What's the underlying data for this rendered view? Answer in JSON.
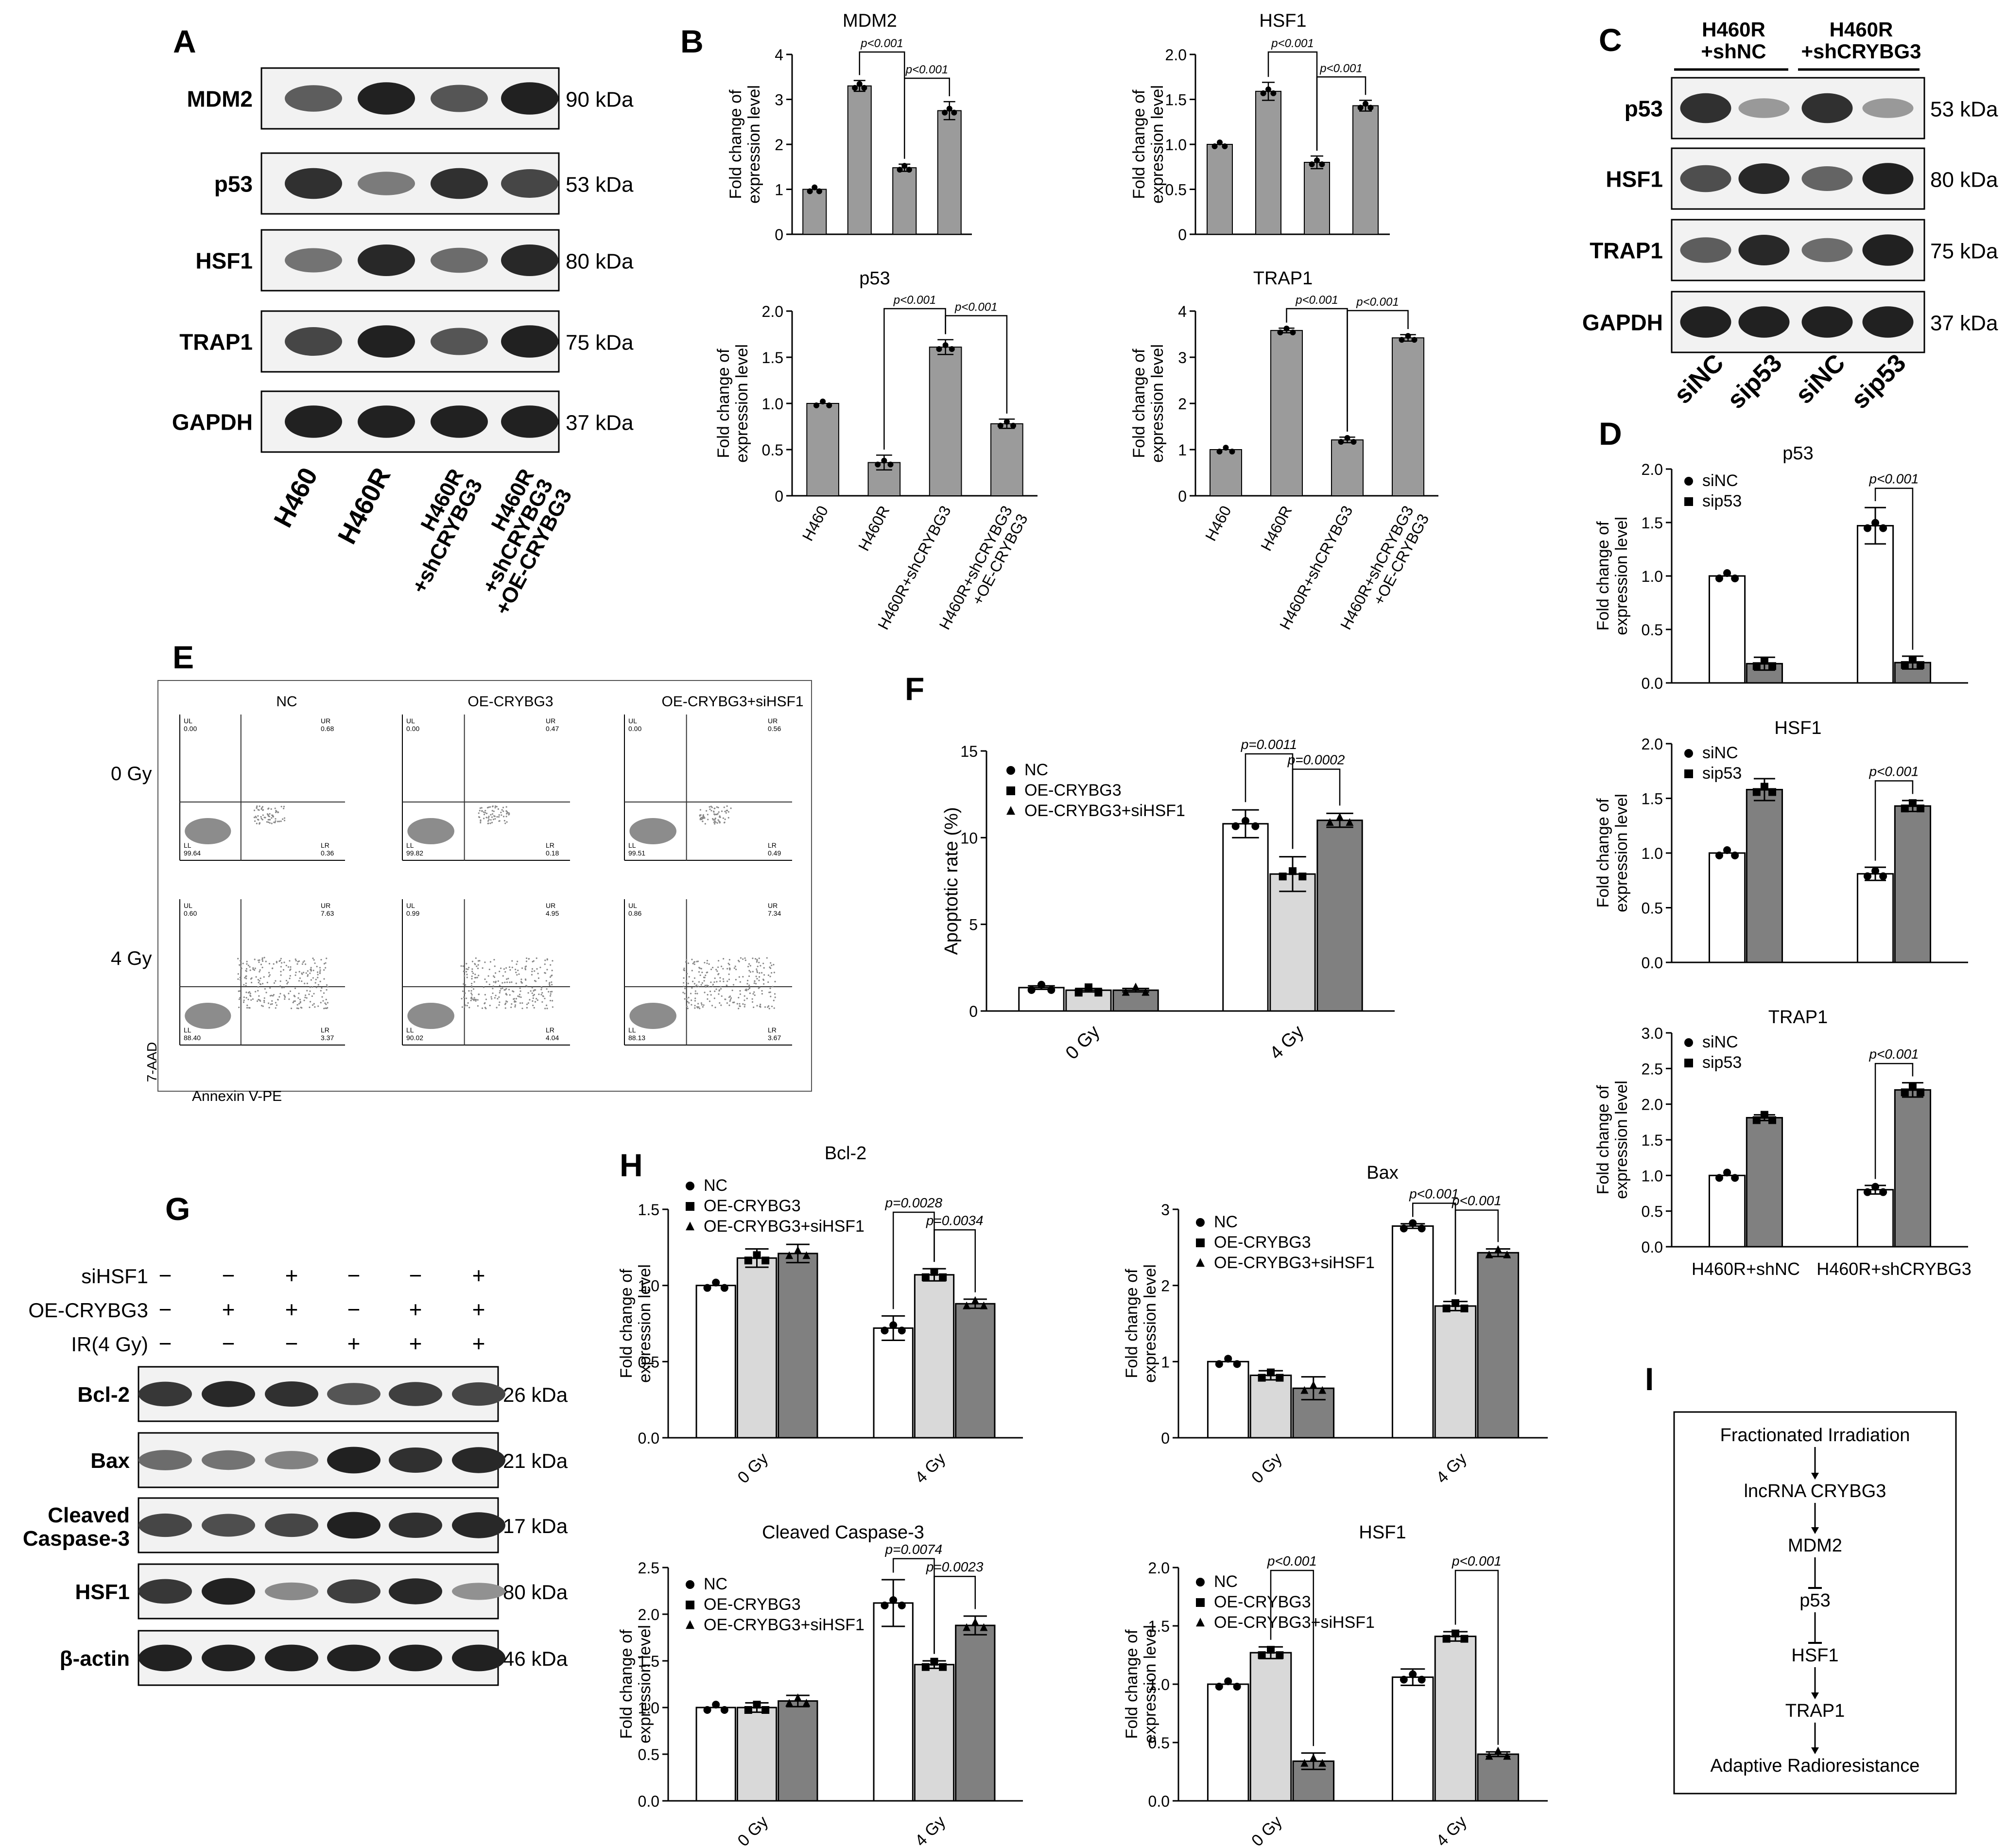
{
  "panel_letters": {
    "A": "A",
    "B": "B",
    "C": "C",
    "D": "D",
    "E": "E",
    "F": "F",
    "G": "G",
    "H": "H",
    "I": "I"
  },
  "common": {
    "ylabel_line1": "Fold change of",
    "ylabel_line2": "expression level"
  },
  "blotA": {
    "bands": [
      "MDM2",
      "p53",
      "HSF1",
      "TRAP1",
      "GAPDH"
    ],
    "kda": [
      "90 kDa",
      "53 kDa",
      "80 kDa",
      "75 kDa",
      "37 kDa"
    ],
    "lanes": [
      [
        "H460"
      ],
      [
        "H460R"
      ],
      [
        "H460R",
        "+shCRYBG3"
      ],
      [
        "H460R",
        "+shCRYBG3",
        "+OE-CRYBG3"
      ]
    ],
    "intensity": [
      [
        0.55,
        0.95,
        0.6,
        0.95
      ],
      [
        0.85,
        0.35,
        0.85,
        0.7
      ],
      [
        0.4,
        0.9,
        0.45,
        0.9
      ],
      [
        0.7,
        0.95,
        0.6,
        0.95
      ],
      [
        0.95,
        0.95,
        0.95,
        0.95
      ]
    ]
  },
  "blotC": {
    "groups": [
      [
        "H460R",
        "+shNC"
      ],
      [
        "H460R",
        "+shCRYBG3"
      ]
    ],
    "bands": [
      "p53",
      "HSF1",
      "TRAP1",
      "GAPDH"
    ],
    "kda": [
      "53 kDa",
      "80 kDa",
      "75 kDa",
      "37 kDa"
    ],
    "lanes": [
      "siNC",
      "sip53",
      "siNC",
      "sip53"
    ],
    "intensity": [
      [
        0.85,
        0.15,
        0.85,
        0.15
      ],
      [
        0.65,
        0.9,
        0.5,
        0.95
      ],
      [
        0.55,
        0.9,
        0.45,
        0.95
      ],
      [
        0.95,
        0.95,
        0.95,
        0.95
      ]
    ]
  },
  "blotG": {
    "rows": [
      {
        "label": "siHSF1",
        "signs": [
          "−",
          "−",
          "+",
          "−",
          "−",
          "+"
        ]
      },
      {
        "label": "OE-CRYBG3",
        "signs": [
          "−",
          "+",
          "+",
          "−",
          "+",
          "+"
        ]
      },
      {
        "label": "IR(4 Gy)",
        "signs": [
          "−",
          "−",
          "−",
          "+",
          "+",
          "+"
        ]
      }
    ],
    "bands": [
      [
        "Bcl-2"
      ],
      [
        "Bax"
      ],
      [
        "Cleaved",
        "Caspase-3"
      ],
      [
        "HSF1"
      ],
      [
        "β-actin"
      ]
    ],
    "kda": [
      "26 kDa",
      "21 kDa",
      "17 kDa",
      "80 kDa",
      "46 kDa"
    ],
    "intensity": [
      [
        0.8,
        0.9,
        0.85,
        0.6,
        0.75,
        0.7
      ],
      [
        0.45,
        0.4,
        0.3,
        0.95,
        0.85,
        0.9
      ],
      [
        0.7,
        0.65,
        0.7,
        0.95,
        0.85,
        0.9
      ],
      [
        0.8,
        0.95,
        0.25,
        0.75,
        0.9,
        0.2
      ],
      [
        0.95,
        0.95,
        0.95,
        0.95,
        0.95,
        0.95
      ]
    ]
  },
  "flow": {
    "columns": [
      "NC",
      "OE-CRYBG3",
      "OE-CRYBG3+siHSF1"
    ],
    "rows": [
      "0 Gy",
      "4 Gy"
    ],
    "ylabel": "7-AAD",
    "xlabel": "Annexin V-PE",
    "quads": {
      "ul": "UL",
      "ur": "UR",
      "ll": "LL",
      "lr": "LR"
    },
    "values": [
      [
        [
          "0.00",
          "0.68",
          "99.64",
          "0.36"
        ],
        [
          "0.00",
          "0.47",
          "99.82",
          "0.18"
        ],
        [
          "0.00",
          "0.56",
          "99.51",
          "0.49"
        ]
      ],
      [
        [
          "0.60",
          "7.63",
          "88.40",
          "3.37"
        ],
        [
          "0.99",
          "4.95",
          "90.02",
          "4.04"
        ],
        [
          "0.86",
          "7.34",
          "88.13",
          "3.67"
        ]
      ]
    ]
  },
  "flowchart": {
    "steps": [
      "Fractionated Irradiation",
      "lncRNA CRYBG3",
      "MDM2",
      "p53",
      "HSF1",
      "TRAP1",
      "Adaptive Radioresistance"
    ],
    "arrows": [
      "arrow",
      "arrow",
      "inhibit",
      "inhibit",
      "arrow",
      "arrow"
    ]
  },
  "chart_data": [
    {
      "panel": "B",
      "type": "bar",
      "title": "MDM2",
      "categories": [
        "H460",
        "H460R",
        "H460R+shCRYBG3",
        [
          "H460R+shCRYBG3",
          "+OE-CRYBG3"
        ]
      ],
      "values": [
        1.0,
        3.3,
        1.48,
        2.75
      ],
      "errors": [
        0,
        0.12,
        0.08,
        0.2
      ],
      "ylim": [
        0,
        4
      ],
      "yticks": [
        "0",
        "1",
        "2",
        "3",
        "4"
      ],
      "brackets": [
        {
          "a": 1,
          "b": 2,
          "label": "p<0.001",
          "level": 0
        },
        {
          "a": 2,
          "b": 3,
          "label": "p<0.001",
          "level": 1
        }
      ]
    },
    {
      "panel": "B",
      "type": "bar",
      "title": "HSF1",
      "categories": [
        "H460",
        "H460R",
        "H460R+shCRYBG3",
        [
          "H460R+shCRYBG3",
          "+OE-CRYBG3"
        ]
      ],
      "values": [
        1.0,
        1.59,
        0.8,
        1.43
      ],
      "errors": [
        0,
        0.1,
        0.07,
        0.06
      ],
      "ylim": [
        0,
        2
      ],
      "yticks": [
        "0",
        "0.5",
        "1.0",
        "1.5",
        "2.0"
      ],
      "brackets": [
        {
          "a": 1,
          "b": 2,
          "label": "p<0.001",
          "level": 0
        },
        {
          "a": 2,
          "b": 3,
          "label": "p<0.001",
          "level": 1
        }
      ]
    },
    {
      "panel": "B",
      "type": "bar",
      "title": "p53",
      "categories": [
        "H460",
        "H460R",
        "H460R+shCRYBG3",
        [
          "H460R+shCRYBG3",
          "+OE-CRYBG3"
        ]
      ],
      "values": [
        1.0,
        0.36,
        1.61,
        0.78
      ],
      "errors": [
        0,
        0.08,
        0.08,
        0.05
      ],
      "ylim": [
        0,
        2
      ],
      "yticks": [
        "0",
        "0.5",
        "1.0",
        "1.5",
        "2.0"
      ],
      "brackets": [
        {
          "a": 1,
          "b": 2,
          "label": "p<0.001",
          "level": 0
        },
        {
          "a": 2,
          "b": 3,
          "label": "p<0.001",
          "level": 1
        }
      ]
    },
    {
      "panel": "B",
      "type": "bar",
      "title": "TRAP1",
      "categories": [
        "H460",
        "H460R",
        "H460R+shCRYBG3",
        [
          "H460R+shCRYBG3",
          "+OE-CRYBG3"
        ]
      ],
      "values": [
        1.0,
        3.58,
        1.21,
        3.42
      ],
      "errors": [
        0,
        0.05,
        0.06,
        0.07
      ],
      "ylim": [
        0,
        4
      ],
      "yticks": [
        "0",
        "1",
        "2",
        "3",
        "4"
      ],
      "brackets": [
        {
          "a": 1,
          "b": 2,
          "label": "p<0.001",
          "level": 0
        },
        {
          "a": 2,
          "b": 3,
          "label": "p<0.001",
          "level": 1
        }
      ]
    },
    {
      "panel": "D",
      "type": "bar",
      "title": "p53",
      "categories": [
        "H460R+shNC",
        "H460R+shCRYBG3"
      ],
      "series": [
        {
          "name": "siNC",
          "values": [
            1.0,
            1.47
          ],
          "errors": [
            0,
            0.17
          ]
        },
        {
          "name": "sip53",
          "values": [
            0.18,
            0.19
          ],
          "errors": [
            0.06,
            0.06
          ]
        }
      ],
      "ylim": [
        0,
        2
      ],
      "yticks": [
        "0.0",
        "0.5",
        "1.0",
        "1.5",
        "2.0"
      ],
      "brackets": [
        {
          "label": "p<0.001"
        }
      ]
    },
    {
      "panel": "D",
      "type": "bar",
      "title": "HSF1",
      "categories": [
        "H460R+shNC",
        "H460R+shCRYBG3"
      ],
      "series": [
        {
          "name": "siNC",
          "values": [
            1.0,
            0.81
          ],
          "errors": [
            0,
            0.06
          ]
        },
        {
          "name": "sip53",
          "values": [
            1.58,
            1.43
          ],
          "errors": [
            0.1,
            0.05
          ]
        }
      ],
      "ylim": [
        0,
        2
      ],
      "yticks": [
        "0.0",
        "0.5",
        "1.0",
        "1.5",
        "2.0"
      ],
      "brackets": [
        {
          "label": "p<0.001"
        }
      ]
    },
    {
      "panel": "D",
      "type": "bar",
      "title": "TRAP1",
      "categories": [
        "H460R+shNC",
        "H460R+shCRYBG3"
      ],
      "series": [
        {
          "name": "siNC",
          "values": [
            1.0,
            0.8
          ],
          "errors": [
            0,
            0.06
          ]
        },
        {
          "name": "sip53",
          "values": [
            1.81,
            2.2
          ],
          "errors": [
            0.04,
            0.1
          ]
        }
      ],
      "ylim": [
        0,
        3
      ],
      "yticks": [
        "0.0",
        "0.5",
        "1.0",
        "1.5",
        "2.0",
        "2.5",
        "3.0"
      ],
      "brackets": [
        {
          "label": "p<0.001"
        }
      ]
    },
    {
      "panel": "F",
      "type": "bar",
      "ylabel": "Apoptotic rate (%)",
      "categories": [
        "0 Gy",
        "4 Gy"
      ],
      "series": [
        {
          "name": "NC",
          "values": [
            1.35,
            10.8
          ],
          "errors": [
            0.1,
            0.8
          ]
        },
        {
          "name": "OE-CRYBG3",
          "values": [
            1.2,
            7.9
          ],
          "errors": [
            0.1,
            1.0
          ]
        },
        {
          "name": "OE-CRYBG3+siHSF1",
          "values": [
            1.2,
            11.0
          ],
          "errors": [
            0.1,
            0.4
          ]
        }
      ],
      "ylim": [
        0,
        15
      ],
      "yticks": [
        "0",
        "5",
        "10",
        "15"
      ],
      "brackets": [
        {
          "g": 1,
          "a": 0,
          "b": 1,
          "label": "p=0.0011",
          "level": 0
        },
        {
          "g": 1,
          "a": 1,
          "b": 2,
          "label": "p=0.0002",
          "level": 1
        }
      ]
    },
    {
      "panel": "H",
      "type": "bar",
      "title": "Bcl-2",
      "categories": [
        "0 Gy",
        "4 Gy"
      ],
      "series": [
        {
          "name": "NC",
          "values": [
            1.0,
            0.72
          ],
          "errors": [
            0,
            0.08
          ]
        },
        {
          "name": "OE-CRYBG3",
          "values": [
            1.18,
            1.07
          ],
          "errors": [
            0.06,
            0.04
          ]
        },
        {
          "name": "OE-CRYBG3+siHSF1",
          "values": [
            1.21,
            0.88
          ],
          "errors": [
            0.06,
            0.03
          ]
        }
      ],
      "ylim": [
        0,
        1.5
      ],
      "yticks": [
        "0.0",
        "0.5",
        "1.0",
        "1.5"
      ],
      "brackets": [
        {
          "g": 1,
          "a": 0,
          "b": 1,
          "label": "p=0.0028",
          "level": 0
        },
        {
          "g": 1,
          "a": 1,
          "b": 2,
          "label": "p=0.0034",
          "level": 1
        }
      ]
    },
    {
      "panel": "H",
      "type": "bar",
      "title": "Bax",
      "categories": [
        "0 Gy",
        "4 Gy"
      ],
      "series": [
        {
          "name": "NC",
          "values": [
            1.0,
            2.78
          ],
          "errors": [
            0,
            0.03
          ]
        },
        {
          "name": "OE-CRYBG3",
          "values": [
            0.82,
            1.73
          ],
          "errors": [
            0.06,
            0.06
          ]
        },
        {
          "name": "OE-CRYBG3+siHSF1",
          "values": [
            0.65,
            2.43
          ],
          "errors": [
            0.15,
            0.05
          ]
        }
      ],
      "ylim": [
        0,
        3
      ],
      "yticks": [
        "0",
        "1",
        "2",
        "3"
      ],
      "brackets": [
        {
          "g": 1,
          "a": 0,
          "b": 1,
          "label": "p<0.001",
          "level": 0
        },
        {
          "g": 1,
          "a": 1,
          "b": 2,
          "label": "p<0.001",
          "level": 1
        }
      ]
    },
    {
      "panel": "H",
      "type": "bar",
      "title": "Cleaved Caspase-3",
      "categories": [
        "0 Gy",
        "4 Gy"
      ],
      "series": [
        {
          "name": "NC",
          "values": [
            1.0,
            2.12
          ],
          "errors": [
            0,
            0.25
          ]
        },
        {
          "name": "OE-CRYBG3",
          "values": [
            1.0,
            1.46
          ],
          "errors": [
            0.05,
            0.04
          ]
        },
        {
          "name": "OE-CRYBG3+siHSF1",
          "values": [
            1.07,
            1.88
          ],
          "errors": [
            0.06,
            0.1
          ]
        }
      ],
      "ylim": [
        0,
        2.5
      ],
      "yticks": [
        "0.0",
        "0.5",
        "1.0",
        "1.5",
        "2.0",
        "2.5"
      ],
      "brackets": [
        {
          "g": 1,
          "a": 0,
          "b": 1,
          "label": "p=0.0074",
          "level": 0
        },
        {
          "g": 1,
          "a": 1,
          "b": 2,
          "label": "p=0.0023",
          "level": 1
        }
      ]
    },
    {
      "panel": "H",
      "type": "bar",
      "title": "HSF1",
      "categories": [
        "0 Gy",
        "4 Gy"
      ],
      "series": [
        {
          "name": "NC",
          "values": [
            1.0,
            1.06
          ],
          "errors": [
            0,
            0.07
          ]
        },
        {
          "name": "OE-CRYBG3",
          "values": [
            1.27,
            1.41
          ],
          "errors": [
            0.05,
            0.04
          ]
        },
        {
          "name": "OE-CRYBG3+siHSF1",
          "values": [
            0.34,
            0.4
          ],
          "errors": [
            0.07,
            0.02
          ]
        }
      ],
      "ylim": [
        0,
        2
      ],
      "yticks": [
        "0.0",
        "0.5",
        "1.0",
        "1.5",
        "2.0"
      ],
      "brackets": [
        {
          "g": 0,
          "a": 1,
          "b": 2,
          "label": "p<0.001",
          "level": 0
        },
        {
          "g": 1,
          "a": 1,
          "b": 2,
          "label": "p<0.001",
          "level": 0
        }
      ]
    }
  ]
}
